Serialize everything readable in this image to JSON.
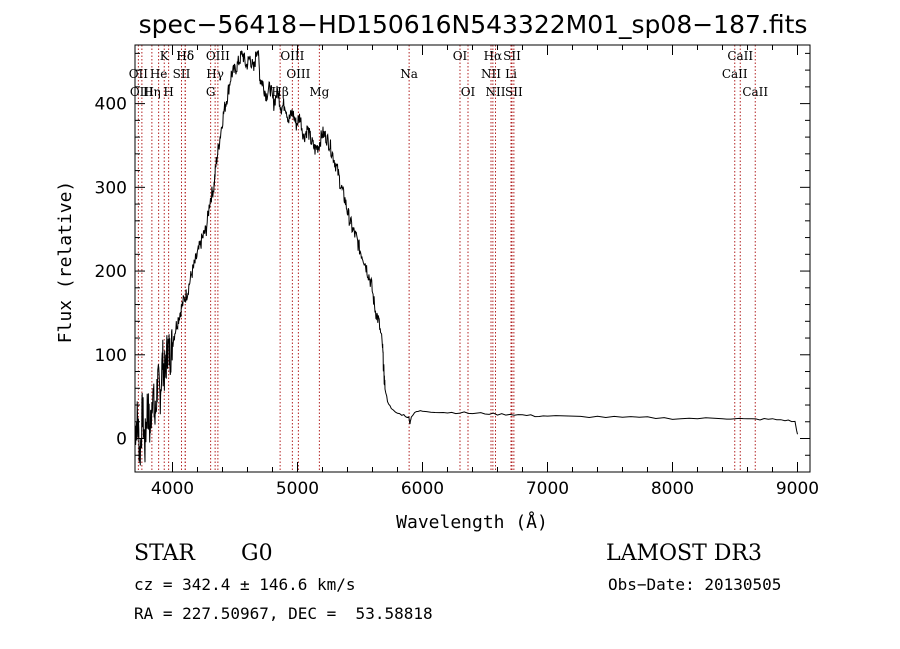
{
  "chart_data": {
    "type": "line",
    "title": "spec−56418−HD150616N543322M01_sp08−187.fits",
    "xlabel": "Wavelength (Å)",
    "ylabel": "Flux (relative)",
    "xlim": [
      3700,
      9100
    ],
    "ylim": [
      -40,
      470
    ],
    "xticks": [
      4000,
      5000,
      6000,
      7000,
      8000,
      9000
    ],
    "yticks": [
      0,
      100,
      200,
      300,
      400
    ],
    "series": [
      {
        "name": "spectrum",
        "x": [
          3700,
          3720,
          3740,
          3760,
          3780,
          3800,
          3820,
          3840,
          3860,
          3880,
          3900,
          3920,
          3940,
          3960,
          3980,
          4000,
          4030,
          4060,
          4090,
          4120,
          4150,
          4180,
          4210,
          4240,
          4270,
          4300,
          4330,
          4350,
          4380,
          4410,
          4440,
          4470,
          4500,
          4530,
          4560,
          4590,
          4620,
          4650,
          4680,
          4700,
          4720,
          4750,
          4780,
          4810,
          4840,
          4870,
          4900,
          4930,
          4960,
          4990,
          5020,
          5050,
          5080,
          5110,
          5140,
          5170,
          5200,
          5230,
          5260,
          5290,
          5320,
          5350,
          5380,
          5410,
          5440,
          5470,
          5500,
          5530,
          5560,
          5590,
          5620,
          5650,
          5680,
          5690,
          5700,
          5720,
          5750,
          5800,
          5850,
          5890,
          5900,
          5910,
          5950,
          6000,
          6100,
          6200,
          6300,
          6400,
          6500,
          6600,
          6700,
          6800,
          6900,
          7000,
          7200,
          7400,
          7600,
          7800,
          8000,
          8200,
          8400,
          8500,
          8600,
          8700,
          8800,
          8900,
          8980,
          9000
        ],
        "y": [
          10,
          25,
          -20,
          35,
          -10,
          45,
          5,
          60,
          20,
          70,
          50,
          95,
          75,
          110,
          100,
          115,
          135,
          150,
          165,
          175,
          195,
          210,
          225,
          240,
          250,
          285,
          300,
          330,
          360,
          390,
          410,
          435,
          440,
          450,
          460,
          445,
          455,
          440,
          470,
          430,
          425,
          410,
          420,
          400,
          415,
          395,
          400,
          380,
          390,
          375,
          385,
          360,
          370,
          355,
          345,
          350,
          365,
          360,
          350,
          335,
          320,
          300,
          285,
          265,
          250,
          240,
          225,
          215,
          200,
          185,
          155,
          140,
          110,
          80,
          60,
          45,
          35,
          30,
          28,
          25,
          18,
          26,
          32,
          33,
          32,
          31,
          31,
          30,
          30,
          29,
          29,
          28,
          27,
          27,
          26,
          26,
          25,
          25,
          24,
          24,
          24,
          24,
          23,
          23,
          23,
          22,
          20,
          5
        ]
      }
    ],
    "lines": [
      {
        "label": "Hδ",
        "wl": 4102,
        "row": 0
      },
      {
        "label": "OII",
        "wl": 3727,
        "row": 1
      },
      {
        "label": "OIII",
        "wl": 3755,
        "row": 2
      },
      {
        "label": "He",
        "wl": 3889,
        "row": 1
      },
      {
        "label": "Hη",
        "wl": 3835,
        "row": 2
      },
      {
        "label": "K",
        "wl": 3934,
        "row": 0
      },
      {
        "label": "SII",
        "wl": 4072,
        "row": 1
      },
      {
        "label": "H",
        "wl": 3969,
        "row": 2
      },
      {
        "label": "Hδ",
        "wl": 4102,
        "row": 0
      },
      {
        "label": "OIII",
        "wl": 4363,
        "row": 0
      },
      {
        "label": "Hγ",
        "wl": 4341,
        "row": 1
      },
      {
        "label": "G",
        "wl": 4305,
        "row": 2
      },
      {
        "label": "OIII",
        "wl": 4959,
        "row": 0
      },
      {
        "label": "OIII",
        "wl": 5007,
        "row": 1
      },
      {
        "label": "Hβ",
        "wl": 4861,
        "row": 2
      },
      {
        "label": "Mg",
        "wl": 5175,
        "row": 2
      },
      {
        "label": "Na",
        "wl": 5893,
        "row": 1
      },
      {
        "label": "OI",
        "wl": 6300,
        "row": 0
      },
      {
        "label": "OI",
        "wl": 6364,
        "row": 2
      },
      {
        "label": "Hα",
        "wl": 6563,
        "row": 0
      },
      {
        "label": "SII",
        "wl": 6716,
        "row": 0
      },
      {
        "label": "NII",
        "wl": 6548,
        "row": 1
      },
      {
        "label": "Li",
        "wl": 6708,
        "row": 1
      },
      {
        "label": "NII",
        "wl": 6584,
        "row": 2
      },
      {
        "label": "SII",
        "wl": 6731,
        "row": 2
      },
      {
        "label": "CaII",
        "wl": 8542,
        "row": 0
      },
      {
        "label": "CaII",
        "wl": 8498,
        "row": 1
      },
      {
        "label": "CaII",
        "wl": 8662,
        "row": 2
      }
    ]
  },
  "info": {
    "object_class": "STAR",
    "subclass": "G0",
    "survey": "LAMOST DR3",
    "velocity": "cz = 342.4 ± 146.6 km/s",
    "obs_date": "Obs−Date: 20130505",
    "coords": "RA = 227.50967, DEC =  53.58818"
  },
  "colors": {
    "spectrum": "#000000",
    "line_marker": "#b22222",
    "axes": "#000000"
  }
}
